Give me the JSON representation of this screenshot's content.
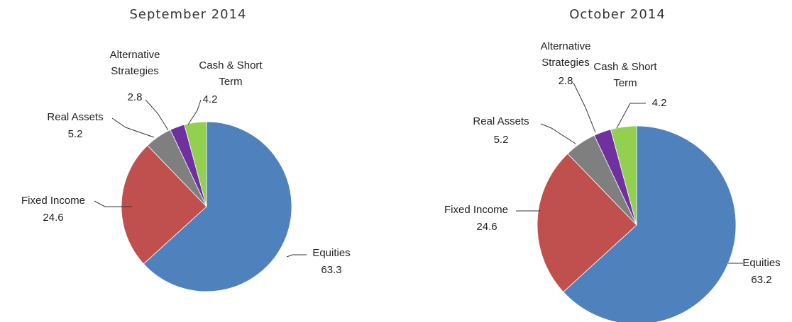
{
  "chart_data": [
    {
      "type": "pie",
      "title": "September 2014",
      "categories": [
        "Equities",
        "Fixed Income",
        "Real Assets",
        "Alternative Strategies",
        "Cash & Short Term"
      ],
      "values": [
        63.3,
        24.6,
        5.2,
        2.8,
        4.2
      ],
      "colors": [
        "#4f81bd",
        "#c0504d",
        "#7f7f7f",
        "#7030a0",
        "#92d050"
      ]
    },
    {
      "type": "pie",
      "title": "October 2014",
      "categories": [
        "Equities",
        "Fixed Income",
        "Real Assets",
        "Alternative Strategies",
        "Cash & Short Term"
      ],
      "values": [
        63.2,
        24.6,
        5.2,
        2.8,
        4.2
      ],
      "colors": [
        "#4f81bd",
        "#c0504d",
        "#7f7f7f",
        "#7030a0",
        "#92d050"
      ]
    }
  ]
}
